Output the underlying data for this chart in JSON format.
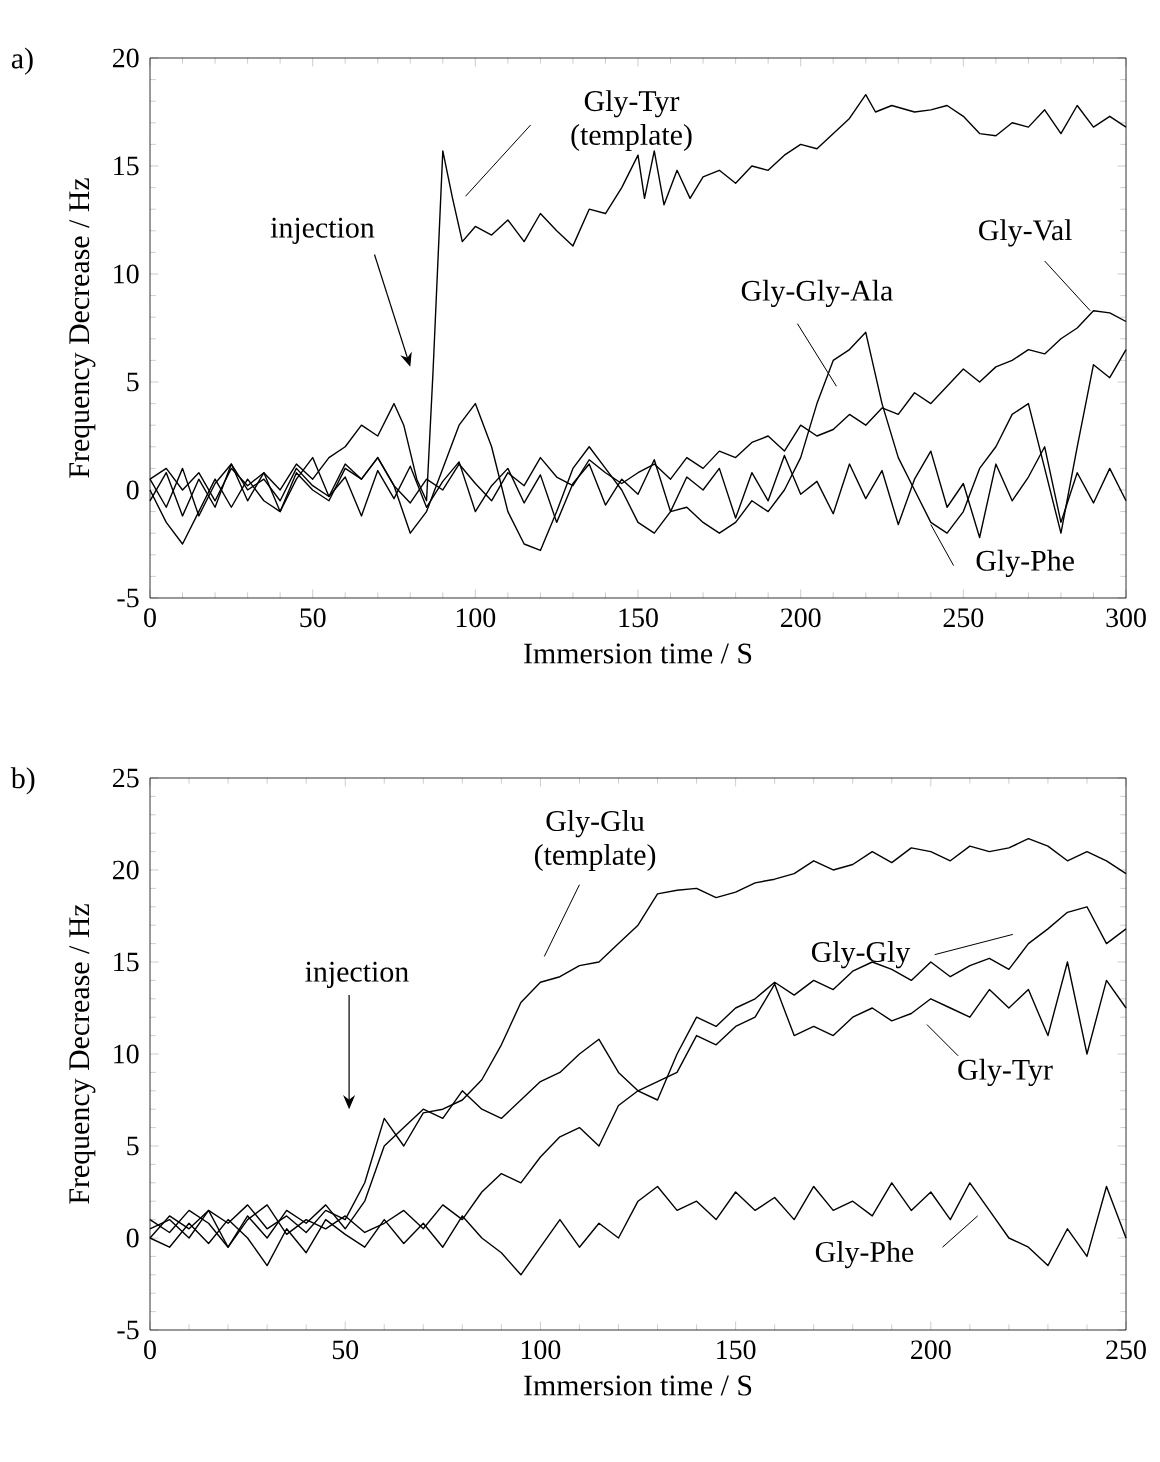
{
  "chart_data": [
    {
      "type": "line",
      "title": "a)",
      "xlabel": "Immersion time / S",
      "ylabel": "Frequency Decrease / Hz",
      "xlim": [
        0,
        300
      ],
      "ylim": [
        -5,
        20
      ],
      "xticks": [
        0,
        50,
        100,
        150,
        200,
        250,
        300
      ],
      "yticks": [
        -5,
        0,
        5,
        10,
        15,
        20
      ],
      "annotations": [
        "injection"
      ],
      "x": [
        0,
        5,
        10,
        15,
        20,
        25,
        30,
        35,
        40,
        45,
        50,
        55,
        60,
        65,
        70,
        75,
        80,
        85,
        90,
        95,
        100,
        105,
        110,
        115,
        120,
        125,
        130,
        135,
        140,
        145,
        150,
        155,
        160,
        165,
        170,
        175,
        180,
        185,
        190,
        195,
        200,
        205,
        210,
        215,
        220,
        225,
        230,
        235,
        240,
        245,
        250,
        255,
        260,
        265,
        270,
        275,
        280,
        285,
        290,
        295,
        300
      ],
      "series": [
        {
          "name": "Gly-Tyr (template)",
          "color": "#000000",
          "x": [
            0,
            5,
            10,
            15,
            20,
            25,
            30,
            35,
            40,
            45,
            50,
            55,
            60,
            65,
            70,
            75,
            78,
            82,
            85,
            87,
            90,
            93,
            96,
            100,
            105,
            110,
            115,
            120,
            125,
            130,
            135,
            140,
            145,
            150,
            152,
            155,
            158,
            162,
            166,
            170,
            175,
            180,
            185,
            190,
            195,
            200,
            205,
            210,
            215,
            220,
            223,
            228,
            235,
            240,
            245,
            250,
            255,
            260,
            265,
            270,
            275,
            280,
            285,
            290,
            295,
            300
          ],
          "values": [
            0.5,
            1,
            0,
            0.8,
            -0.5,
            1,
            0.2,
            0.8,
            0,
            1.2,
            0.5,
            1.5,
            2,
            3,
            2.5,
            4,
            3,
            0.5,
            -0.5,
            5.5,
            15.7,
            13.5,
            11.5,
            12.2,
            11.8,
            12.5,
            11.5,
            12.8,
            12,
            11.3,
            13,
            12.8,
            14,
            15.5,
            13.5,
            15.7,
            13.2,
            14.8,
            13.5,
            14.5,
            14.8,
            14.2,
            15,
            14.8,
            15.5,
            16,
            15.8,
            16.5,
            17.2,
            18.3,
            17.5,
            17.8,
            17.5,
            17.6,
            17.8,
            17.3,
            16.5,
            16.4,
            17,
            16.8,
            17.6,
            16.5,
            17.8,
            16.8,
            17.3,
            16.8
          ]
        },
        {
          "name": "Gly-Val",
          "color": "#000000",
          "values": [
            -0.5,
            0.8,
            -1.2,
            0.5,
            -0.8,
            1.2,
            0,
            0.5,
            -0.5,
            1,
            0.2,
            -0.3,
            1.2,
            0.5,
            1.5,
            0.2,
            -0.6,
            0.5,
            0,
            1.2,
            0.3,
            -0.5,
            0.8,
            0.2,
            1.5,
            0.6,
            0.2,
            1.4,
            0.8,
            0.3,
            0.8,
            1.2,
            0.5,
            1.5,
            1,
            1.8,
            1.5,
            2.2,
            2.5,
            1.8,
            3,
            2.5,
            2.8,
            3.5,
            3,
            3.8,
            3.5,
            4.5,
            4,
            4.8,
            5.6,
            5,
            5.7,
            6,
            6.5,
            6.3,
            7,
            7.5,
            8.3,
            8.2,
            7.8
          ]
        },
        {
          "name": "Gly-Gly-Ala",
          "color": "#000000",
          "values": [
            0,
            -1.5,
            -2.5,
            -1,
            0.5,
            -0.8,
            0.5,
            -0.5,
            -1,
            0.8,
            0,
            -0.5,
            1,
            0.5,
            1.5,
            0.2,
            -2,
            -1,
            1,
            3,
            4,
            2,
            -1,
            -2.5,
            -2.8,
            -1,
            1,
            2,
            1,
            0,
            -1.5,
            -2,
            -1,
            -0.8,
            -1.5,
            -2,
            -1.5,
            -0.5,
            -1,
            0,
            1.5,
            4,
            6,
            6.5,
            7.3,
            4,
            1.5,
            0,
            -1.5,
            -2,
            -1,
            1,
            2,
            3.5,
            4,
            1,
            -2,
            2,
            5.8,
            5.2,
            6.5
          ]
        },
        {
          "name": "Gly-Phe",
          "color": "#000000",
          "values": [
            0.5,
            -0.8,
            1,
            -1.2,
            0.3,
            1.2,
            -0.5,
            0.8,
            -1,
            0.5,
            1.5,
            -0.3,
            0.6,
            -1.2,
            0.9,
            -0.4,
            1.1,
            -0.8,
            0.4,
            1.3,
            -1,
            0.2,
            1,
            -0.6,
            0.7,
            -1.5,
            0.3,
            1.2,
            -0.7,
            0.5,
            -0.2,
            1.4,
            -1,
            0.6,
            0,
            1,
            -1.3,
            0.8,
            -0.5,
            1.6,
            -0.2,
            0.4,
            -1.1,
            1.2,
            -0.4,
            0.9,
            -1.6,
            0.5,
            1.8,
            -0.8,
            0.3,
            -2.2,
            1.2,
            -0.5,
            0.6,
            2,
            -1.5,
            0.8,
            -0.6,
            1,
            -0.5
          ]
        }
      ]
    },
    {
      "type": "line",
      "title": "b)",
      "xlabel": "Immersion time / S",
      "ylabel": "Frequency Decrease / Hz",
      "xlim": [
        0,
        250
      ],
      "ylim": [
        -5,
        25
      ],
      "xticks": [
        0,
        50,
        100,
        150,
        200,
        250
      ],
      "yticks": [
        -5,
        0,
        5,
        10,
        15,
        20,
        25
      ],
      "annotations": [
        "injection"
      ],
      "x": [
        0,
        5,
        10,
        15,
        20,
        25,
        30,
        35,
        40,
        45,
        50,
        55,
        60,
        65,
        70,
        75,
        80,
        85,
        90,
        95,
        100,
        105,
        110,
        115,
        120,
        125,
        130,
        135,
        140,
        145,
        150,
        155,
        160,
        165,
        170,
        175,
        180,
        185,
        190,
        195,
        200,
        205,
        210,
        215,
        220,
        225,
        230,
        235,
        240,
        245,
        250
      ],
      "series": [
        {
          "name": "Gly-Glu (template)",
          "color": "#000000",
          "values": [
            0.5,
            1,
            0,
            1.5,
            0.8,
            1.8,
            0.5,
            1.2,
            0.3,
            1.5,
            1,
            3,
            6.5,
            5,
            6.8,
            7,
            7.5,
            8.6,
            10.5,
            12.8,
            13.9,
            14.2,
            14.8,
            15,
            16,
            17,
            18.7,
            18.9,
            19,
            18.5,
            18.8,
            19.3,
            19.5,
            19.8,
            20.5,
            20,
            20.3,
            21,
            20.4,
            21.2,
            21,
            20.5,
            21.3,
            21,
            21.2,
            21.7,
            21.3,
            20.5,
            21,
            20.5,
            19.8
          ]
        },
        {
          "name": "Gly-Gly",
          "color": "#000000",
          "values": [
            0,
            1.2,
            0.5,
            1.5,
            -0.5,
            1,
            1.8,
            0.2,
            1,
            0.5,
            1.2,
            0.3,
            0.8,
            1.5,
            0.5,
            1.8,
            1,
            2.5,
            3.5,
            3,
            4.4,
            5.5,
            6,
            5,
            7.2,
            8,
            7.5,
            10,
            12,
            11.5,
            12.5,
            13,
            13.9,
            13.2,
            14,
            13.5,
            14.5,
            15,
            14.6,
            14,
            15,
            14.2,
            14.8,
            15.2,
            14.6,
            16,
            16.8,
            17.7,
            18,
            16,
            16.8
          ]
        },
        {
          "name": "Gly-Tyr",
          "color": "#000000",
          "values": [
            1,
            0.3,
            1.5,
            0.8,
            -0.5,
            1.2,
            0,
            1.5,
            0.8,
            1.8,
            0.5,
            2,
            5,
            6,
            7,
            6.5,
            8,
            7,
            6.5,
            7.5,
            8.5,
            9,
            10,
            10.8,
            9,
            8,
            8.5,
            9,
            11,
            10.5,
            11.5,
            12,
            13.8,
            11,
            11.5,
            11,
            12,
            12.5,
            11.8,
            12.2,
            13,
            12.5,
            12,
            13.5,
            12.5,
            13.5,
            11,
            15,
            10,
            14,
            12.5
          ]
        },
        {
          "name": "Gly-Phe",
          "color": "#000000",
          "values": [
            0,
            -0.5,
            0.8,
            -0.3,
            1,
            0,
            -1.5,
            0.5,
            -0.8,
            1,
            0.2,
            -0.5,
            1,
            -0.3,
            0.8,
            -0.5,
            1.2,
            0,
            -0.8,
            -2,
            -0.5,
            1,
            -0.5,
            0.8,
            0,
            2,
            2.8,
            1.5,
            2,
            1,
            2.5,
            1.5,
            2.2,
            1,
            2.8,
            1.5,
            2,
            1.2,
            3,
            1.5,
            2.5,
            1,
            3,
            1.5,
            0,
            -0.5,
            -1.5,
            0.5,
            -1,
            2.8,
            0
          ]
        }
      ]
    }
  ]
}
